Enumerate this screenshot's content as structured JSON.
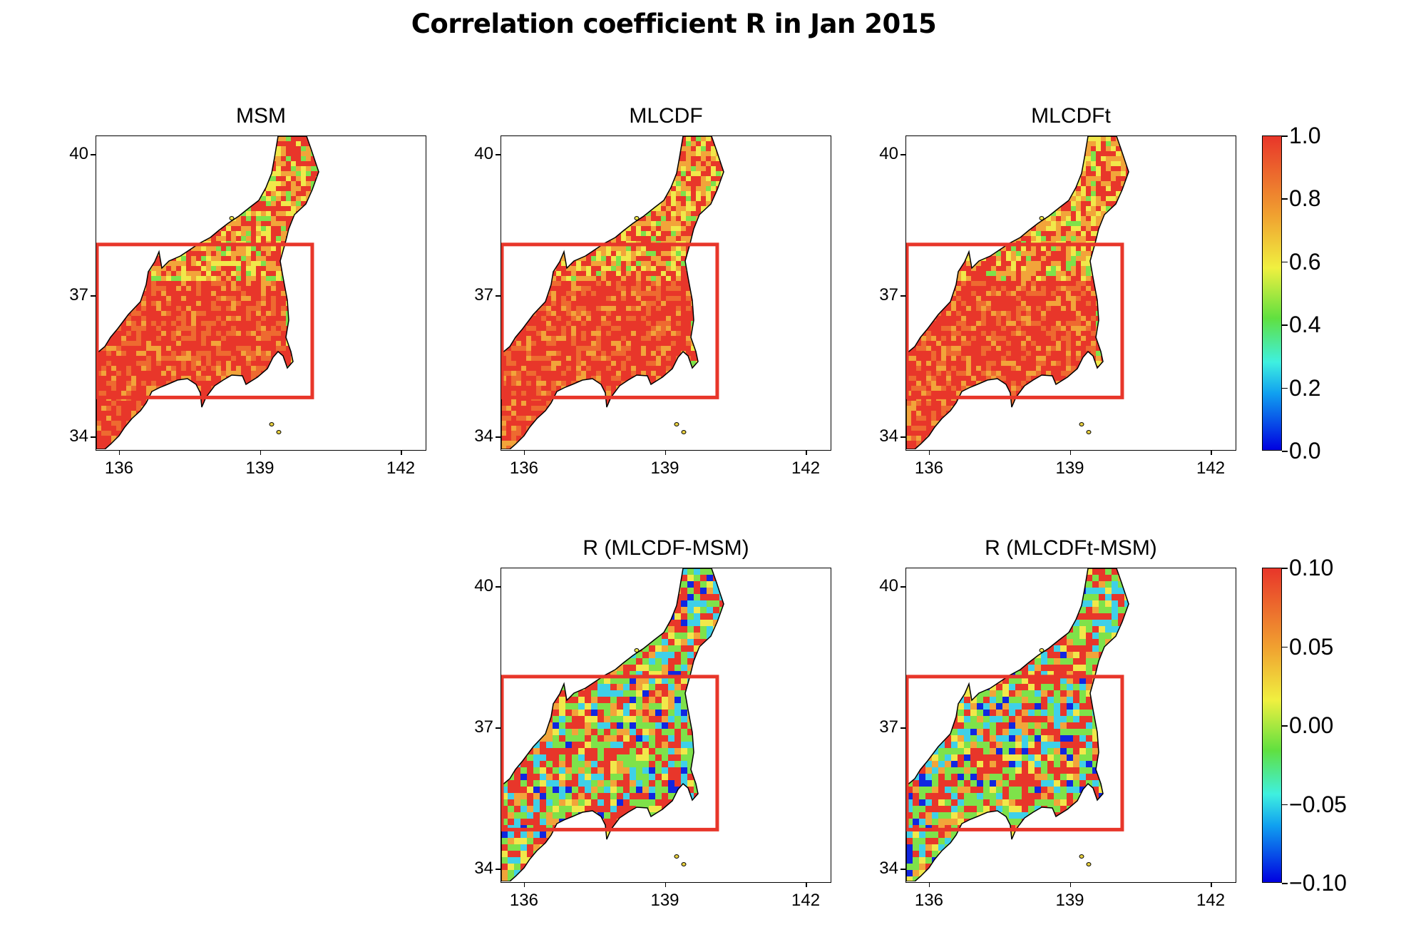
{
  "title": "Correlation coefficient R in Jan 2015",
  "colors": {
    "region_box": "#e8362a",
    "coast": "#000000",
    "high": "#e8362a",
    "mid": "#f2a43a",
    "yellow": "#f1e84a",
    "green": "#7ee24a",
    "cyan": "#3fd0e8",
    "blue": "#1026e0"
  },
  "chart_data": [
    {
      "type": "heatmap",
      "title": "MSM",
      "xticks": [
        "136",
        "139",
        "142"
      ],
      "yticks": [
        "40",
        "37",
        "34"
      ],
      "xlim": [
        135.5,
        142.5
      ],
      "ylim": [
        33.75,
        40.4
      ],
      "highlight_box": {
        "lon": [
          135.5,
          140.1
        ],
        "lat": [
          34.85,
          38.1
        ]
      },
      "colorbar": "top"
    },
    {
      "type": "heatmap",
      "title": "MLCDF",
      "xticks": [
        "136",
        "139",
        "142"
      ],
      "yticks": [
        "40",
        "37",
        "34"
      ],
      "xlim": [
        135.5,
        142.5
      ],
      "ylim": [
        33.75,
        40.4
      ],
      "highlight_box": {
        "lon": [
          135.5,
          140.1
        ],
        "lat": [
          34.85,
          38.1
        ]
      },
      "colorbar": "top"
    },
    {
      "type": "heatmap",
      "title": "MLCDFt",
      "xticks": [
        "136",
        "139",
        "142"
      ],
      "yticks": [
        "40",
        "37",
        "34"
      ],
      "xlim": [
        135.5,
        142.5
      ],
      "ylim": [
        33.75,
        40.4
      ],
      "highlight_box": {
        "lon": [
          135.5,
          140.1
        ],
        "lat": [
          34.85,
          38.1
        ]
      },
      "colorbar": "top"
    },
    {
      "type": "heatmap",
      "title": "R (MLCDF-MSM)",
      "xticks": [
        "136",
        "139",
        "142"
      ],
      "yticks": [
        "40",
        "37",
        "34"
      ],
      "xlim": [
        135.5,
        142.5
      ],
      "ylim": [
        33.75,
        40.4
      ],
      "highlight_box": {
        "lon": [
          135.5,
          140.1
        ],
        "lat": [
          34.85,
          38.1
        ]
      },
      "colorbar": "bottom"
    },
    {
      "type": "heatmap",
      "title": "R (MLCDFt-MSM)",
      "xticks": [
        "136",
        "139",
        "142"
      ],
      "yticks": [
        "40",
        "37",
        "34"
      ],
      "xlim": [
        135.5,
        142.5
      ],
      "ylim": [
        33.75,
        40.4
      ],
      "highlight_box": {
        "lon": [
          135.5,
          140.1
        ],
        "lat": [
          34.85,
          38.1
        ]
      },
      "colorbar": "bottom"
    }
  ],
  "colorbars": {
    "top": {
      "range": [
        0.0,
        1.0
      ],
      "labels": [
        "1.0",
        "0.8",
        "0.6",
        "0.4",
        "0.2",
        "0.0"
      ]
    },
    "bottom": {
      "range": [
        -0.1,
        0.1
      ],
      "labels": [
        "0.10",
        "0.05",
        "0.00",
        "−0.05",
        "−0.10"
      ]
    }
  }
}
